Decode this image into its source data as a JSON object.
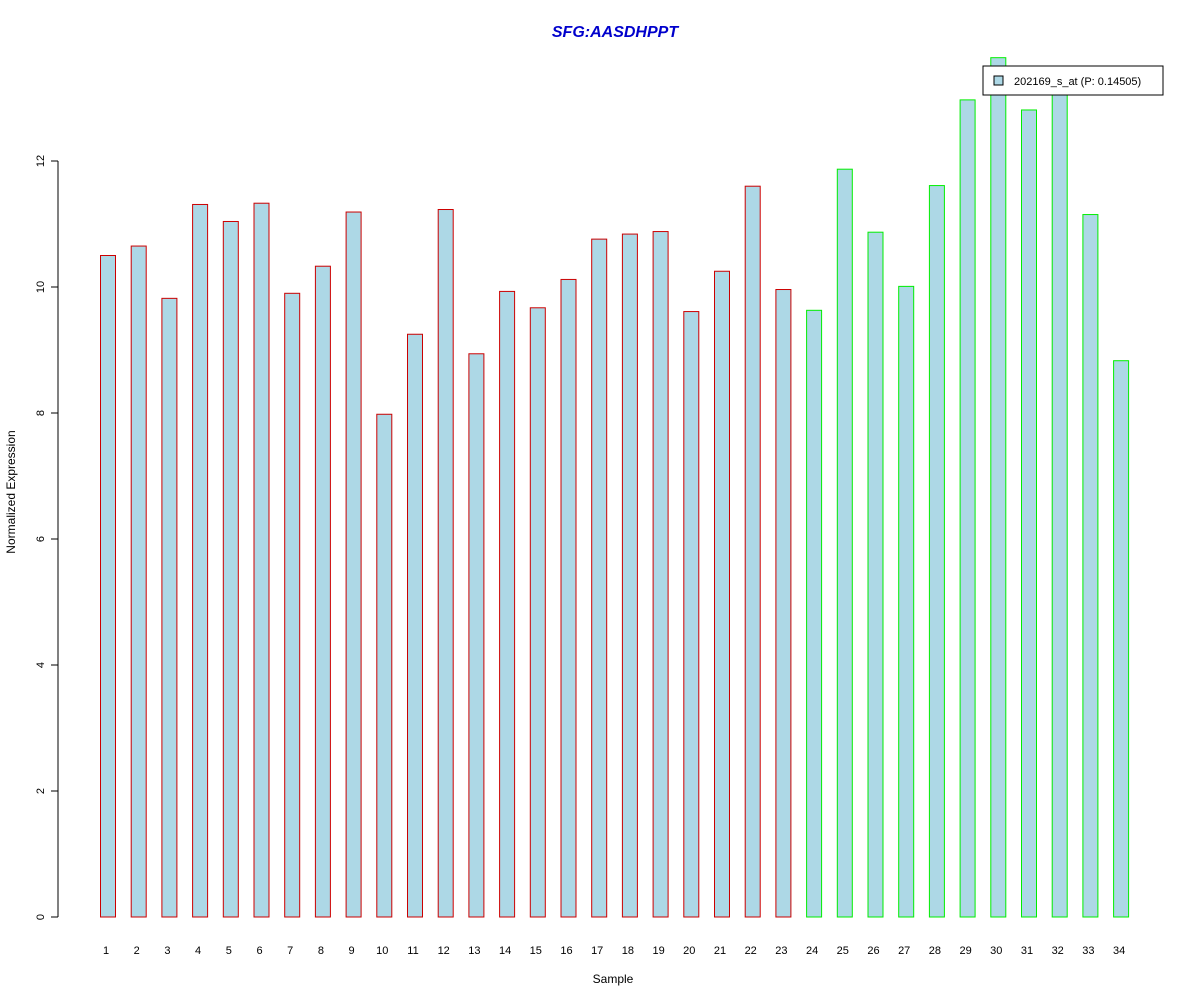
{
  "chart_data": {
    "type": "bar",
    "title": "SFG:AASDHPPT",
    "xlabel": "Sample",
    "ylabel": "Normalized Expression",
    "ylim": [
      0,
      13.6
    ],
    "yticks": [
      "0",
      "2",
      "4",
      "6",
      "8",
      "10",
      "12"
    ],
    "grid": false,
    "legend_position": "top-right",
    "categories": [
      "1",
      "2",
      "3",
      "4",
      "5",
      "6",
      "7",
      "8",
      "9",
      "10",
      "11",
      "12",
      "13",
      "14",
      "15",
      "16",
      "17",
      "18",
      "19",
      "20",
      "21",
      "22",
      "23",
      "24",
      "25",
      "26",
      "27",
      "28",
      "29",
      "30",
      "31",
      "32",
      "33",
      "34"
    ],
    "series": [
      {
        "name": "202169_s_at (P: 0.14505)",
        "values": [
          10.5,
          10.65,
          9.82,
          11.31,
          11.04,
          11.33,
          9.9,
          10.33,
          11.19,
          7.98,
          9.25,
          11.23,
          8.94,
          9.93,
          9.67,
          10.12,
          10.76,
          10.84,
          10.88,
          9.61,
          10.25,
          11.6,
          9.96,
          9.63,
          11.87,
          10.87,
          10.01,
          11.61,
          12.97,
          13.64,
          12.81,
          13.1,
          11.15,
          8.83
        ]
      }
    ],
    "group_of_sample": [
      "A",
      "A",
      "A",
      "A",
      "A",
      "A",
      "A",
      "A",
      "A",
      "A",
      "A",
      "A",
      "A",
      "A",
      "A",
      "A",
      "A",
      "A",
      "A",
      "A",
      "A",
      "A",
      "A",
      "B",
      "B",
      "B",
      "B",
      "B",
      "B",
      "B",
      "B",
      "B",
      "B",
      "B"
    ],
    "colors": {
      "title": "#0000cc",
      "bar_fill": "#add8e6",
      "group_A_border": "#cc0000",
      "group_B_border": "#00ee00",
      "axis": "#000000"
    }
  }
}
